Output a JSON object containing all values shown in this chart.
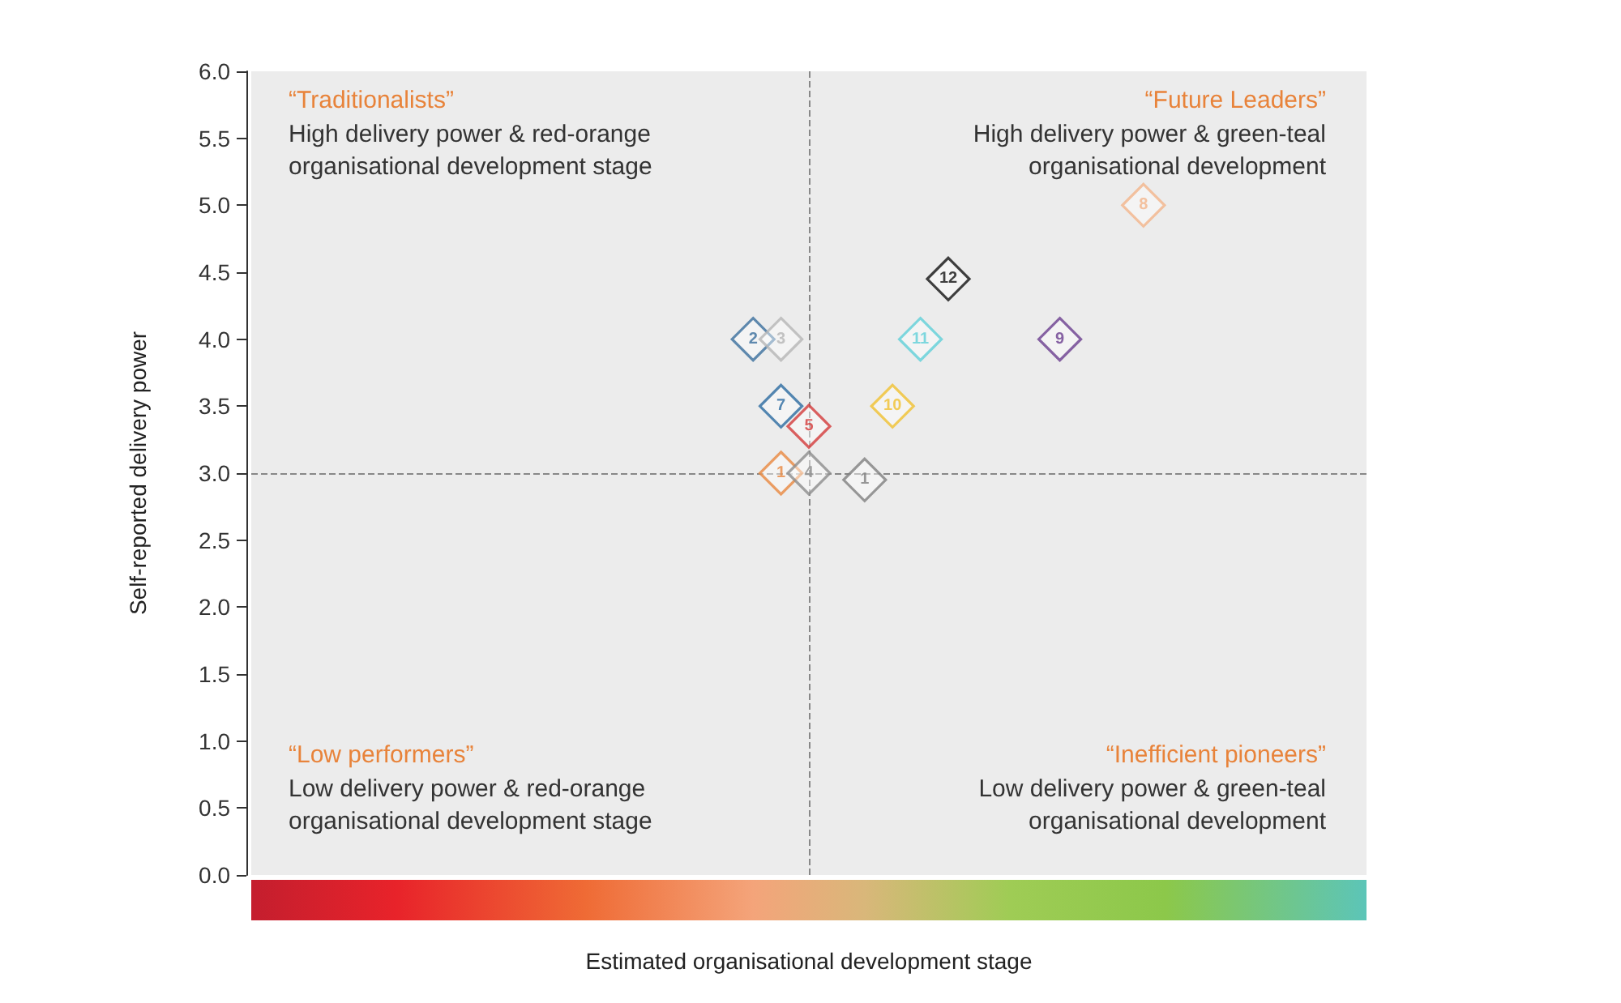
{
  "chart_data": {
    "type": "scatter",
    "xlabel": "Estimated organisational development stage",
    "ylabel": "Self-reported delivery power",
    "categories": [
      null,
      null,
      null,
      null,
      null,
      null,
      null,
      null,
      null,
      null,
      null,
      null,
      null,
      null,
      null,
      null,
      null,
      null,
      null,
      null,
      null,
      null,
      null,
      null,
      null,
      null,
      null,
      null,
      null,
      null,
      null,
      null,
      null,
      null,
      null,
      null,
      null,
      null,
      null,
      null,
      null
    ],
    "ylim": [
      0,
      6
    ],
    "yticks": [
      {
        "value": 0,
        "label": "0.0"
      },
      {
        "value": 0.5,
        "label": "0.5"
      },
      {
        "value": 1,
        "label": "1.0"
      },
      {
        "value": 1.5,
        "label": "1.5"
      },
      {
        "value": 2,
        "label": "2.0"
      },
      {
        "value": 2.5,
        "label": "2.5"
      },
      {
        "value": 3,
        "label": "3.0"
      },
      {
        "value": 3.5,
        "label": "3.5"
      },
      {
        "value": 4,
        "label": "4.0"
      },
      {
        "value": 4.5,
        "label": "4.5"
      },
      {
        "value": 5,
        "label": "5.0"
      },
      {
        "value": 5.5,
        "label": "5.5"
      },
      {
        "value": 6,
        "label": "6.0"
      }
    ],
    "tick_labels": "y",
    "marker": "diamond",
    "grid": false,
    "series": [
      {
        "name": "2",
        "color": "#3a6e9c",
        "values": [
          null,
          null,
          null,
          null,
          null,
          null,
          null,
          null,
          null,
          null,
          null,
          null,
          null,
          null,
          null,
          null,
          null,
          null,
          4.0,
          null,
          null,
          null,
          null,
          null,
          null,
          null,
          null,
          null,
          null,
          null,
          null,
          null,
          null,
          null,
          null,
          null,
          null,
          null,
          null,
          null,
          null
        ]
      },
      {
        "name": "3",
        "color": "#b5b5b5",
        "values": [
          null,
          null,
          null,
          null,
          null,
          null,
          null,
          null,
          null,
          null,
          null,
          null,
          null,
          null,
          null,
          null,
          null,
          null,
          null,
          4.0,
          null,
          null,
          null,
          null,
          null,
          null,
          null,
          null,
          null,
          null,
          null,
          null,
          null,
          null,
          null,
          null,
          null,
          null,
          null,
          null,
          null
        ]
      },
      {
        "name": "5",
        "color": "#d33a3a",
        "values": [
          null,
          null,
          null,
          null,
          null,
          null,
          null,
          null,
          null,
          null,
          null,
          null,
          null,
          null,
          null,
          null,
          null,
          null,
          null,
          null,
          3.35,
          null,
          null,
          null,
          null,
          null,
          null,
          null,
          null,
          null,
          null,
          null,
          null,
          null,
          null,
          null,
          null,
          null,
          null,
          null,
          null
        ]
      },
      {
        "name": "7",
        "color": "#2a6aa0",
        "values": [
          null,
          null,
          null,
          null,
          null,
          null,
          null,
          null,
          null,
          null,
          null,
          null,
          null,
          null,
          null,
          null,
          null,
          null,
          null,
          3.5,
          null,
          null,
          null,
          null,
          null,
          null,
          null,
          null,
          null,
          null,
          null,
          null,
          null,
          null,
          null,
          null,
          null,
          null,
          null,
          null,
          null
        ]
      },
      {
        "name": "1",
        "color": "#e8873e",
        "values": [
          null,
          null,
          null,
          null,
          null,
          null,
          null,
          null,
          null,
          null,
          null,
          null,
          null,
          null,
          null,
          null,
          null,
          null,
          null,
          3.0,
          null,
          null,
          null,
          null,
          null,
          null,
          null,
          null,
          null,
          null,
          null,
          null,
          null,
          null,
          null,
          null,
          null,
          null,
          null,
          null,
          null
        ]
      },
      {
        "name": "4",
        "color": "#8c8c8c",
        "values": [
          null,
          null,
          null,
          null,
          null,
          null,
          null,
          null,
          null,
          null,
          null,
          null,
          null,
          null,
          null,
          null,
          null,
          null,
          null,
          null,
          3.0,
          null,
          null,
          null,
          null,
          null,
          null,
          null,
          null,
          null,
          null,
          null,
          null,
          null,
          null,
          null,
          null,
          null,
          null,
          null,
          null
        ]
      },
      {
        "name": "1",
        "color": "#808080",
        "values": [
          null,
          null,
          null,
          null,
          null,
          null,
          null,
          null,
          null,
          null,
          null,
          null,
          null,
          null,
          null,
          null,
          null,
          null,
          null,
          null,
          null,
          null,
          2.95,
          null,
          null,
          null,
          null,
          null,
          null,
          null,
          null,
          null,
          null,
          null,
          null,
          null,
          null,
          null,
          null,
          null,
          null
        ]
      },
      {
        "name": "10",
        "color": "#f0c030",
        "values": [
          null,
          null,
          null,
          null,
          null,
          null,
          null,
          null,
          null,
          null,
          null,
          null,
          null,
          null,
          null,
          null,
          null,
          null,
          null,
          null,
          null,
          null,
          null,
          3.5,
          null,
          null,
          null,
          null,
          null,
          null,
          null,
          null,
          null,
          null,
          null,
          null,
          null,
          null,
          null,
          null,
          null
        ]
      },
      {
        "name": "11",
        "color": "#5fd0d8",
        "values": [
          null,
          null,
          null,
          null,
          null,
          null,
          null,
          null,
          null,
          null,
          null,
          null,
          null,
          null,
          null,
          null,
          null,
          null,
          null,
          null,
          null,
          null,
          null,
          null,
          4.0,
          null,
          null,
          null,
          null,
          null,
          null,
          null,
          null,
          null,
          null,
          null,
          null,
          null,
          null,
          null,
          null
        ]
      },
      {
        "name": "12",
        "color": "#111111",
        "values": [
          null,
          null,
          null,
          null,
          null,
          null,
          null,
          null,
          null,
          null,
          null,
          null,
          null,
          null,
          null,
          null,
          null,
          null,
          null,
          null,
          null,
          null,
          null,
          null,
          null,
          4.45,
          null,
          null,
          null,
          null,
          null,
          null,
          null,
          null,
          null,
          null,
          null,
          null,
          null,
          null,
          null
        ]
      },
      {
        "name": "9",
        "color": "#6a3d8f",
        "values": [
          null,
          null,
          null,
          null,
          null,
          null,
          null,
          null,
          null,
          null,
          null,
          null,
          null,
          null,
          null,
          null,
          null,
          null,
          null,
          null,
          null,
          null,
          null,
          null,
          null,
          null,
          null,
          null,
          null,
          4.0,
          null,
          null,
          null,
          null,
          null,
          null,
          null,
          null,
          null,
          null,
          null
        ]
      },
      {
        "name": "8",
        "color": "#f2b48a",
        "values": [
          null,
          null,
          null,
          null,
          null,
          null,
          null,
          null,
          null,
          null,
          null,
          null,
          null,
          null,
          null,
          null,
          null,
          null,
          null,
          null,
          null,
          null,
          null,
          null,
          null,
          null,
          null,
          null,
          null,
          null,
          null,
          null,
          5.0,
          null,
          null,
          null,
          null,
          null,
          null,
          null,
          null
        ]
      }
    ],
    "ref_lines": [
      {
        "axis": "y",
        "value": 3.0,
        "color": "#888888",
        "line_style": "dashed"
      }
    ],
    "annotations": [
      "“Traditionalists”",
      "High delivery power & red-orange\norganisational development stage",
      "“Future Leaders”",
      "High delivery power & green-teal\norganisational development",
      "“Low performers”",
      "Low delivery power & red-orange\norganisational development stage",
      "“Inefficient pioneers”",
      "Low delivery power & green-teal\norganisational development"
    ]
  }
}
